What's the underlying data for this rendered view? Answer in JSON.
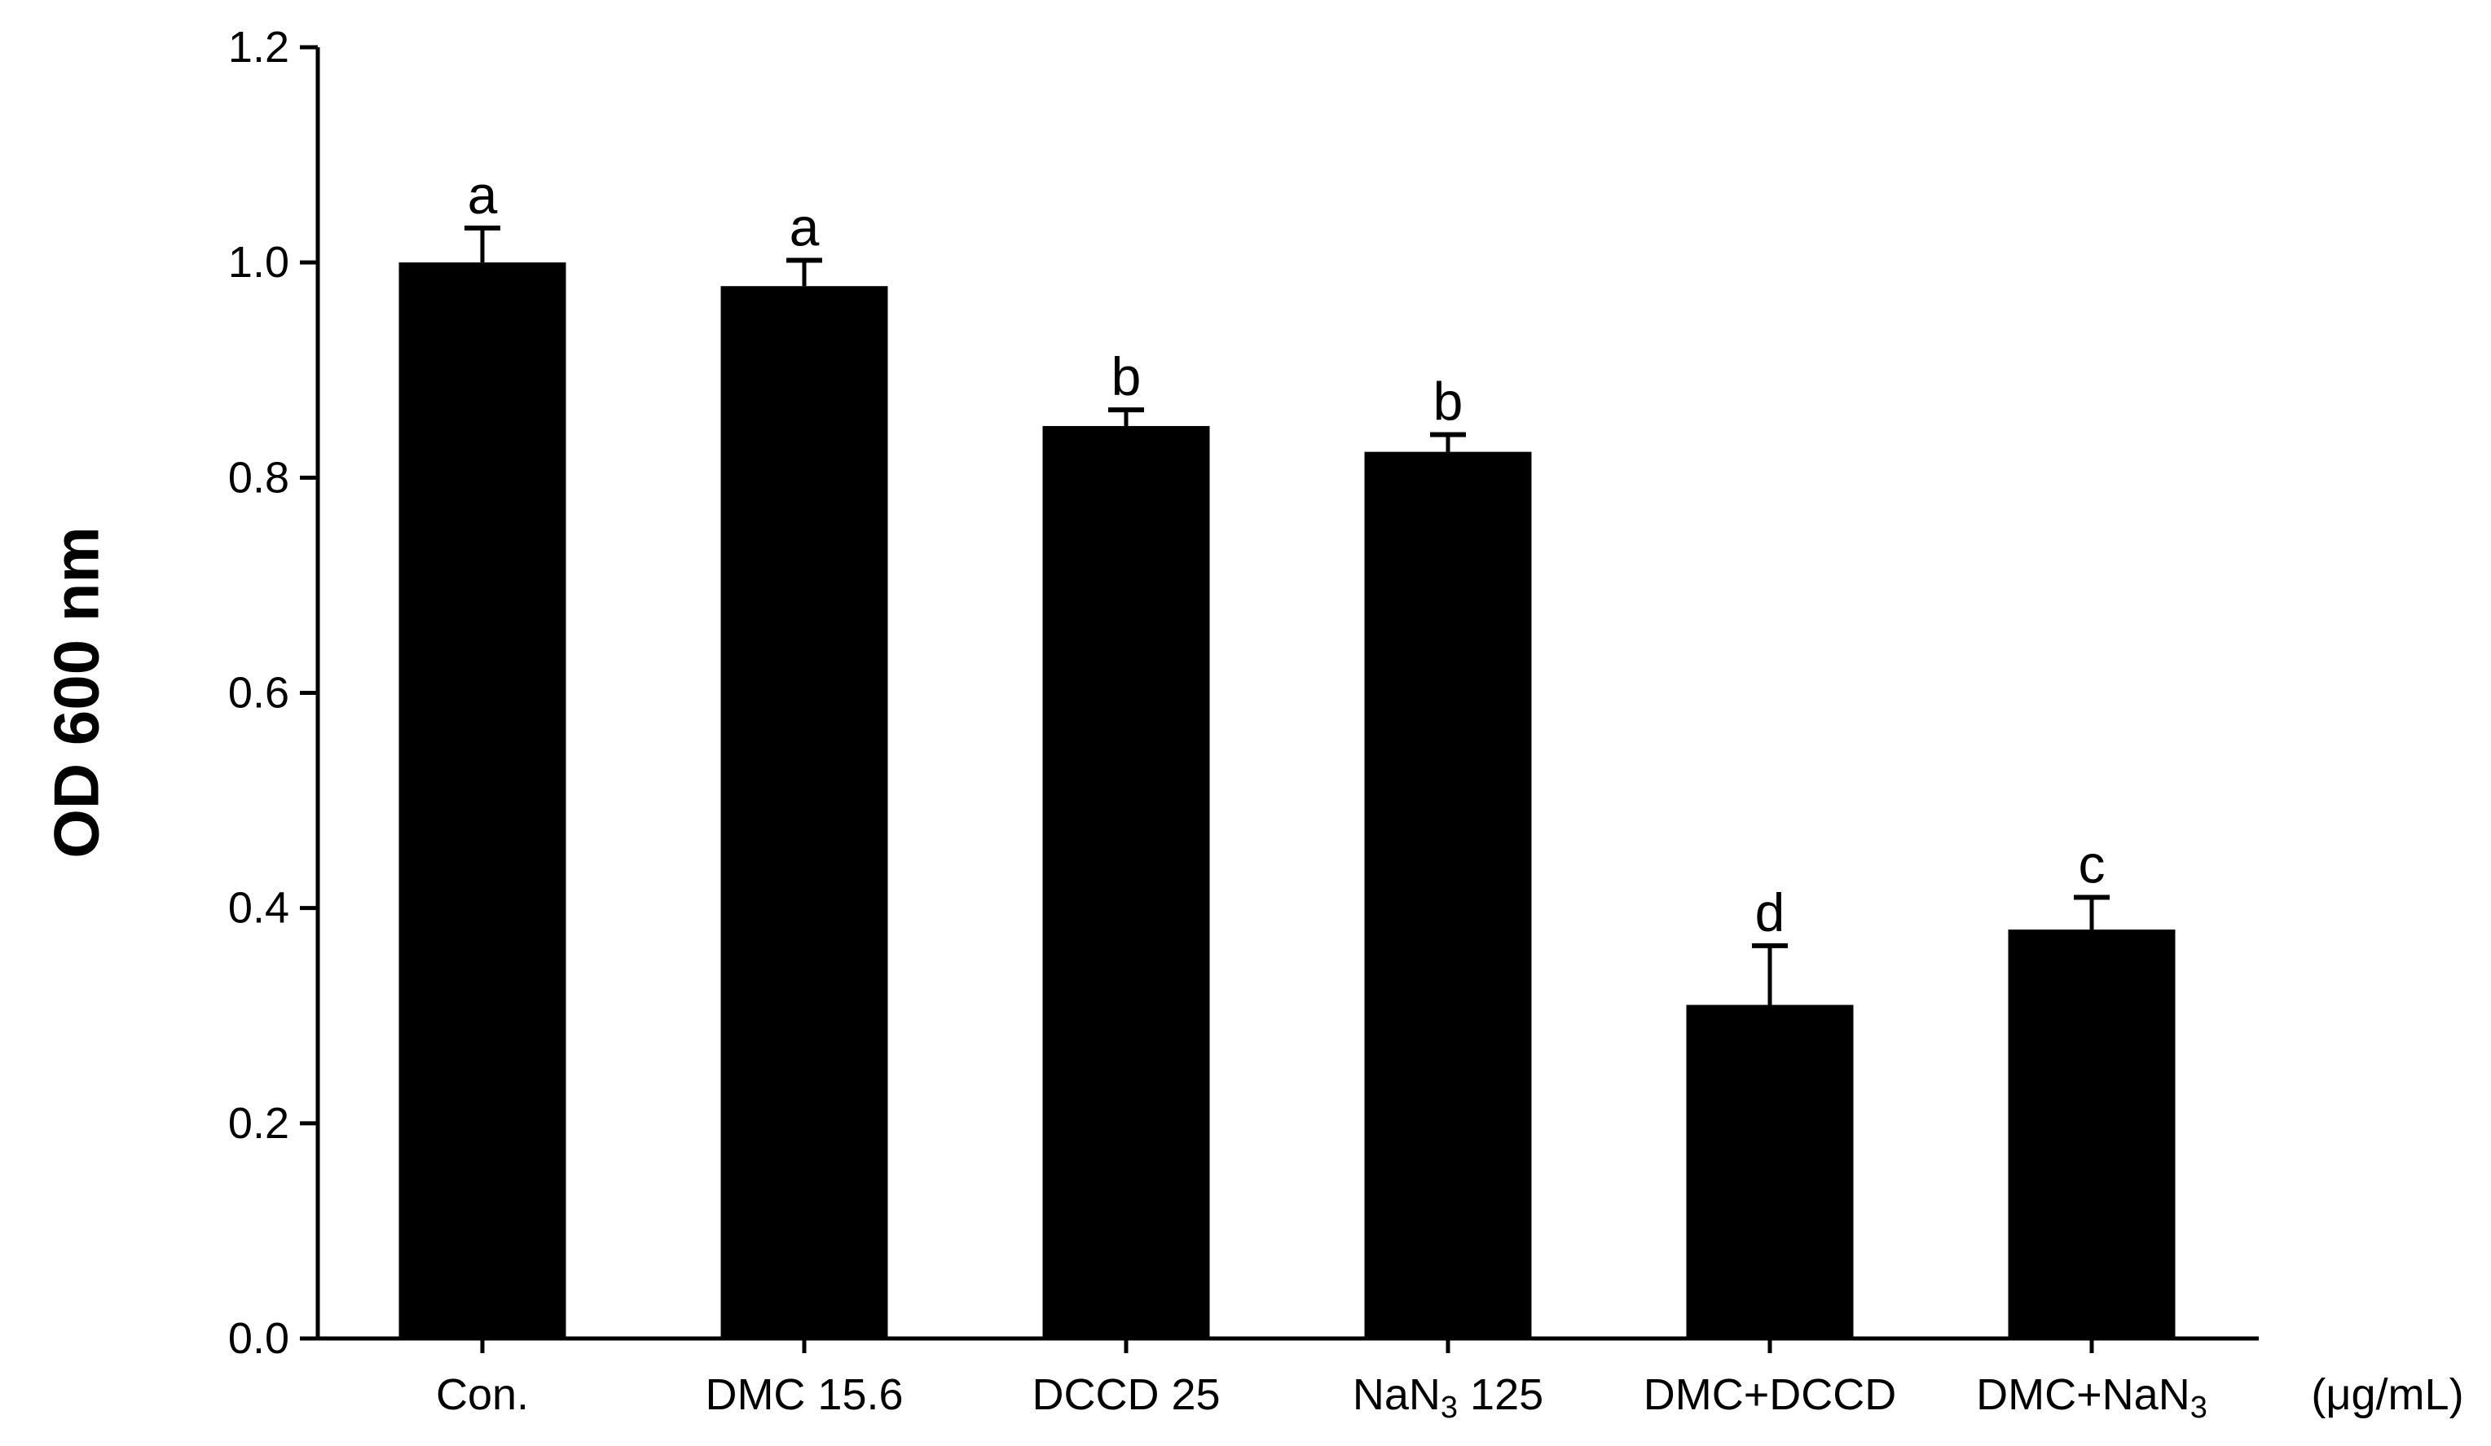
{
  "chart_data": {
    "type": "bar",
    "title": "",
    "xlabel": "",
    "ylabel": "OD 600 nm",
    "unit_note": "(μg/mL)",
    "ylim": [
      0,
      1.2
    ],
    "yticks": [
      "0.0",
      "0.2",
      "0.4",
      "0.6",
      "0.8",
      "1.0",
      "1.2"
    ],
    "grid": false,
    "legend": "none",
    "bar_color": "#000000",
    "categories": [
      {
        "main": "Con.",
        "sub": "",
        "rest": ""
      },
      {
        "main": "DMC 15.6",
        "sub": "",
        "rest": ""
      },
      {
        "main": "DCCD 25",
        "sub": "",
        "rest": ""
      },
      {
        "main": "NaN",
        "sub": "3",
        "rest": " 125"
      },
      {
        "main": "DMC+DCCD",
        "sub": "",
        "rest": ""
      },
      {
        "main": "DMC+NaN",
        "sub": "3",
        "rest": ""
      }
    ],
    "values": [
      1.0,
      0.978,
      0.848,
      0.824,
      0.31,
      0.38
    ],
    "errors": [
      0.032,
      0.024,
      0.015,
      0.016,
      0.055,
      0.03
    ],
    "significance": [
      "a",
      "a",
      "b",
      "b",
      "d",
      "c"
    ]
  }
}
